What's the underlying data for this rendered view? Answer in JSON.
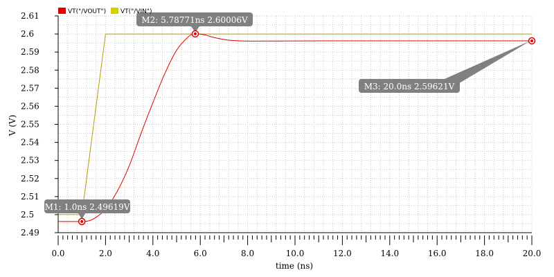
{
  "chart_data": {
    "type": "line",
    "xlabel": "time (ns)",
    "ylabel": "V (V)",
    "xlim": [
      0,
      20
    ],
    "ylim": [
      2.49,
      2.61
    ],
    "x_ticks": [
      "0.0",
      "2.0",
      "4.0",
      "6.0",
      "8.0",
      "10.0",
      "12.0",
      "14.0",
      "16.0",
      "18.0",
      "20.0"
    ],
    "y_ticks": [
      "2.49",
      "2.5",
      "2.51",
      "2.52",
      "2.53",
      "2.54",
      "2.55",
      "2.56",
      "2.57",
      "2.58",
      "2.59",
      "2.6",
      "2.61"
    ],
    "grid": true,
    "legend_position": "top-left",
    "series": [
      {
        "name": "VT(\"/VOUT\")",
        "color": "#e00000",
        "points": [
          [
            0,
            2.4962
          ],
          [
            0.5,
            2.4962
          ],
          [
            1.0,
            2.49619
          ],
          [
            1.3,
            2.4966
          ],
          [
            1.6,
            2.4985
          ],
          [
            2.0,
            2.503
          ],
          [
            2.5,
            2.513
          ],
          [
            3.0,
            2.527
          ],
          [
            3.5,
            2.545
          ],
          [
            4.0,
            2.562
          ],
          [
            4.5,
            2.578
          ],
          [
            5.0,
            2.591
          ],
          [
            5.5,
            2.5985
          ],
          [
            5.78771,
            2.60006
          ],
          [
            6.2,
            2.5995
          ],
          [
            6.6,
            2.598
          ],
          [
            7.2,
            2.5966
          ],
          [
            8.0,
            2.5961
          ],
          [
            9.0,
            2.5961
          ],
          [
            10.0,
            2.59615
          ],
          [
            12.0,
            2.5962
          ],
          [
            14.0,
            2.5962
          ],
          [
            16.0,
            2.5962
          ],
          [
            18.0,
            2.5962
          ],
          [
            20.0,
            2.59621
          ]
        ]
      },
      {
        "name": "VT(\"/VIN\")",
        "color": "#b0a000",
        "points": [
          [
            0,
            2.5
          ],
          [
            1.0,
            2.5
          ],
          [
            2.0,
            2.6
          ],
          [
            20.0,
            2.6
          ]
        ]
      }
    ],
    "markers": [
      {
        "label": "M1: 1.0ns 2.49619V",
        "x": 1.0,
        "y": 2.49619
      },
      {
        "label": "M2: 5.78771ns 2.60006V",
        "x": 5.78771,
        "y": 2.60006
      },
      {
        "label": "M3: 20.0ns 2.59621V",
        "x": 20.0,
        "y": 2.59621
      }
    ]
  },
  "legend": {
    "vout_label": "VT(\"/VOUT\")",
    "vout_color": "#e00000",
    "vin_label": "VT(\"/VIN\")",
    "vin_color": "#d4d000"
  }
}
